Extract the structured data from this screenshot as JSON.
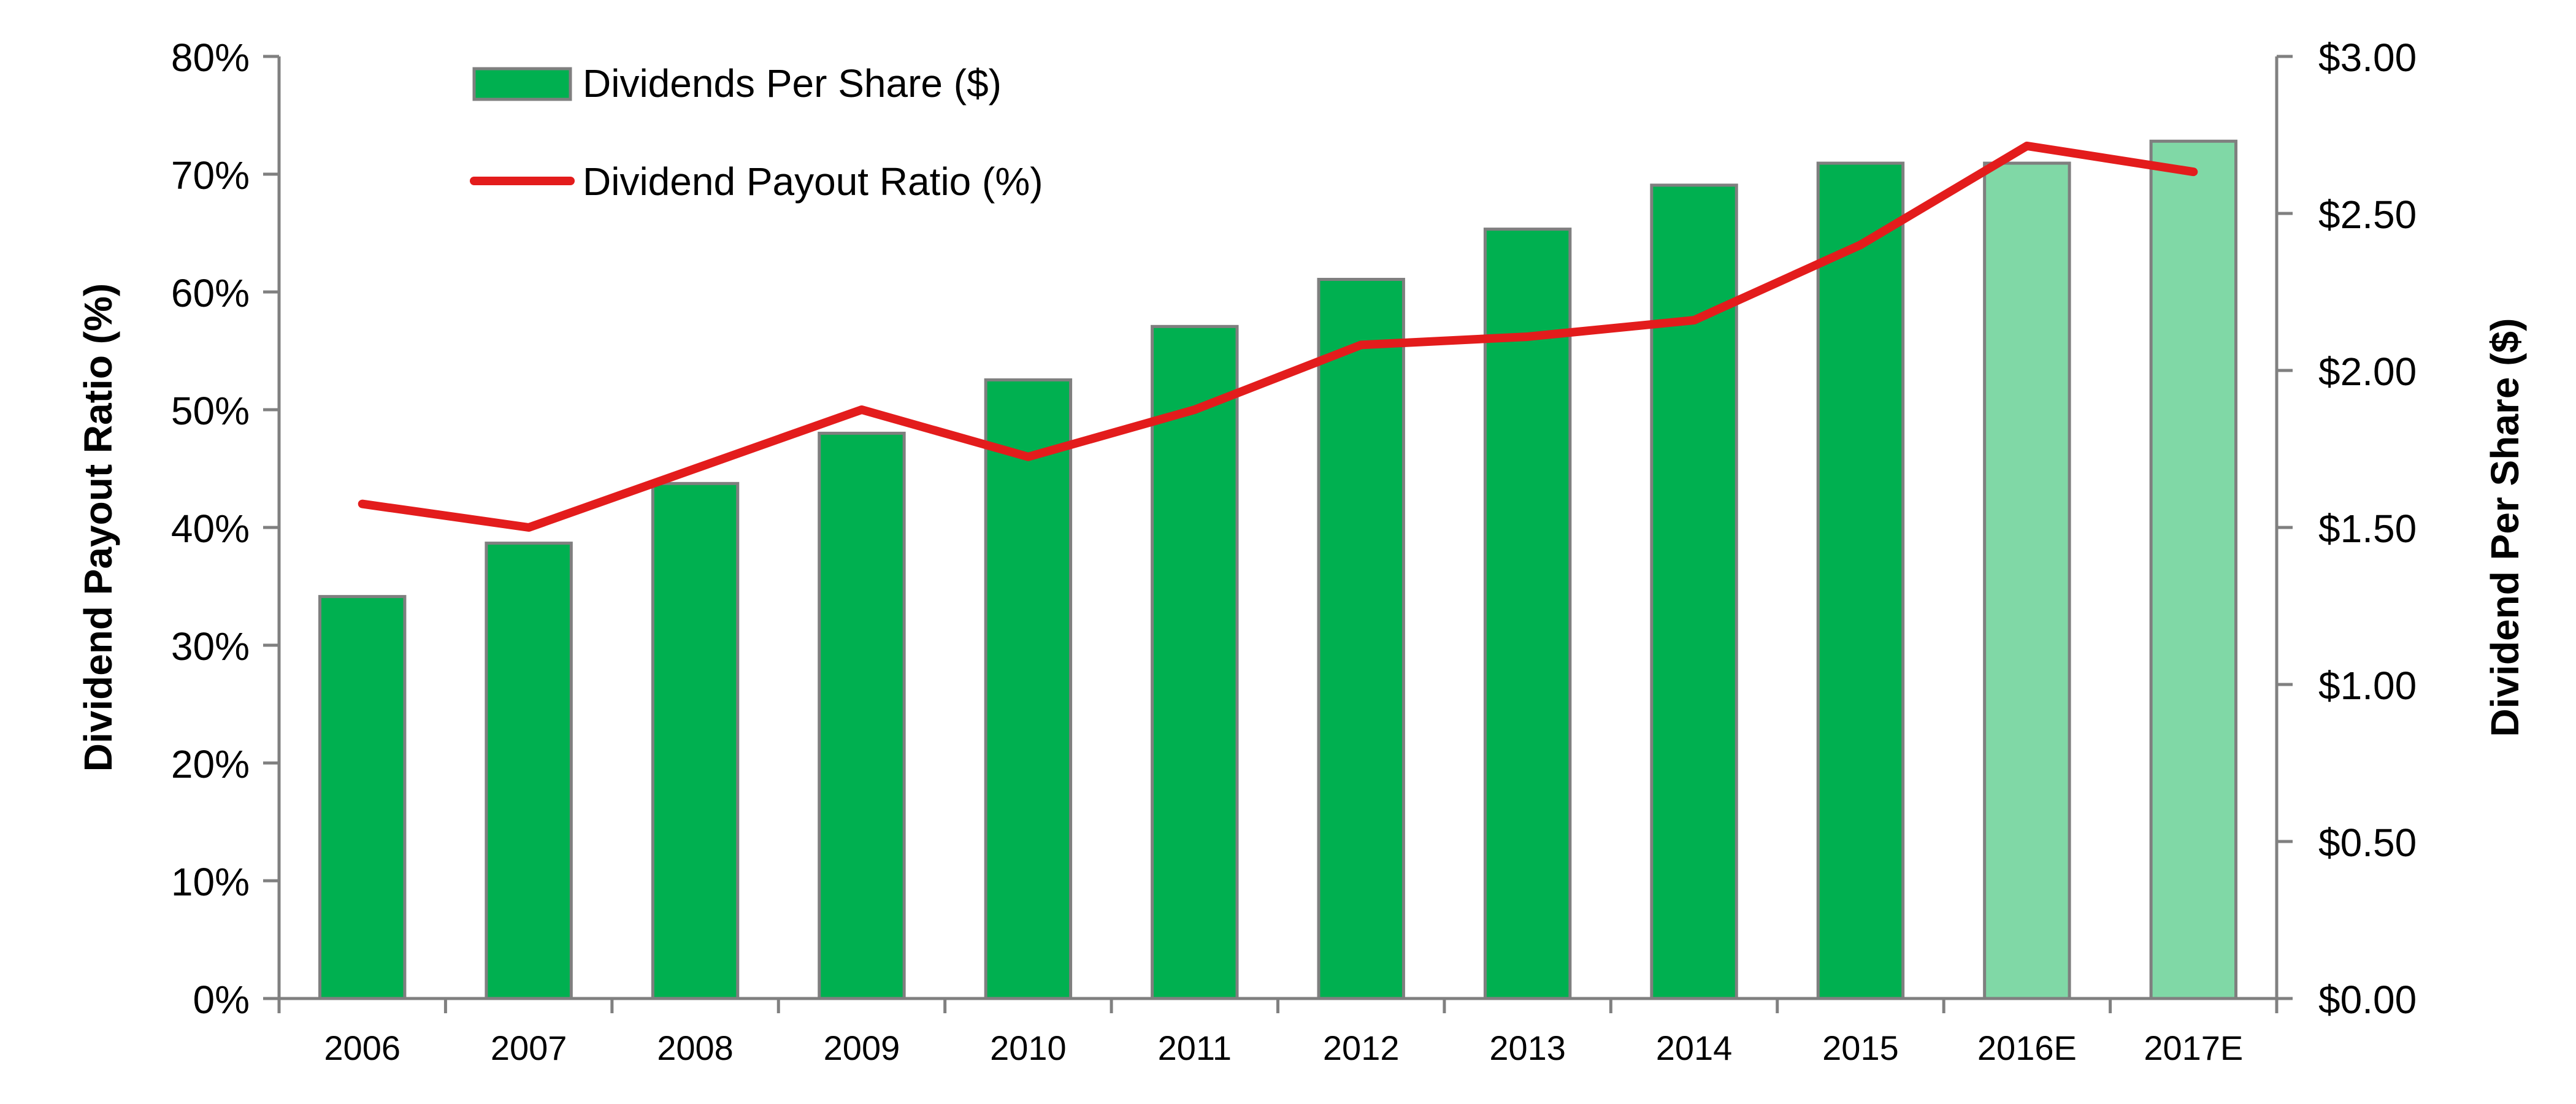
{
  "chart_data": {
    "type": "bar",
    "categories": [
      "2006",
      "2007",
      "2008",
      "2009",
      "2010",
      "2011",
      "2012",
      "2013",
      "2014",
      "2015",
      "2016E",
      "2017E"
    ],
    "estimated_categories": [
      "2016E",
      "2017E"
    ],
    "series": [
      {
        "name": "Dividends Per Share ($)",
        "type": "bar",
        "axis": "right",
        "color": "#00B050",
        "estimate_color": "#80D8A6",
        "values": [
          1.28,
          1.45,
          1.64,
          1.8,
          1.97,
          2.14,
          2.29,
          2.45,
          2.59,
          2.66,
          2.66,
          2.73
        ]
      },
      {
        "name": "Dividend Payout Ratio (%)",
        "type": "line",
        "axis": "left",
        "color": "#E31C1C",
        "values": [
          42.0,
          40.0,
          45.0,
          50.0,
          46.0,
          50.0,
          55.5,
          56.2,
          57.6,
          64.0,
          72.4,
          70.2
        ]
      }
    ],
    "y_left": {
      "label": "Dividend Payout Ratio (%)",
      "range": [
        0,
        80
      ],
      "ticks": [
        "0%",
        "10%",
        "20%",
        "30%",
        "40%",
        "50%",
        "60%",
        "70%",
        "80%"
      ]
    },
    "y_right": {
      "label": "Dividend Per Share ($)",
      "range": [
        0,
        3
      ],
      "ticks": [
        "$0.00",
        "$0.50",
        "$1.00",
        "$1.50",
        "$2.00",
        "$2.50",
        "$3.00"
      ]
    },
    "legend": {
      "placement": "top-left",
      "entries": [
        "Dividends Per Share ($)",
        "Dividend Payout Ratio (%)"
      ]
    },
    "grid": false
  }
}
